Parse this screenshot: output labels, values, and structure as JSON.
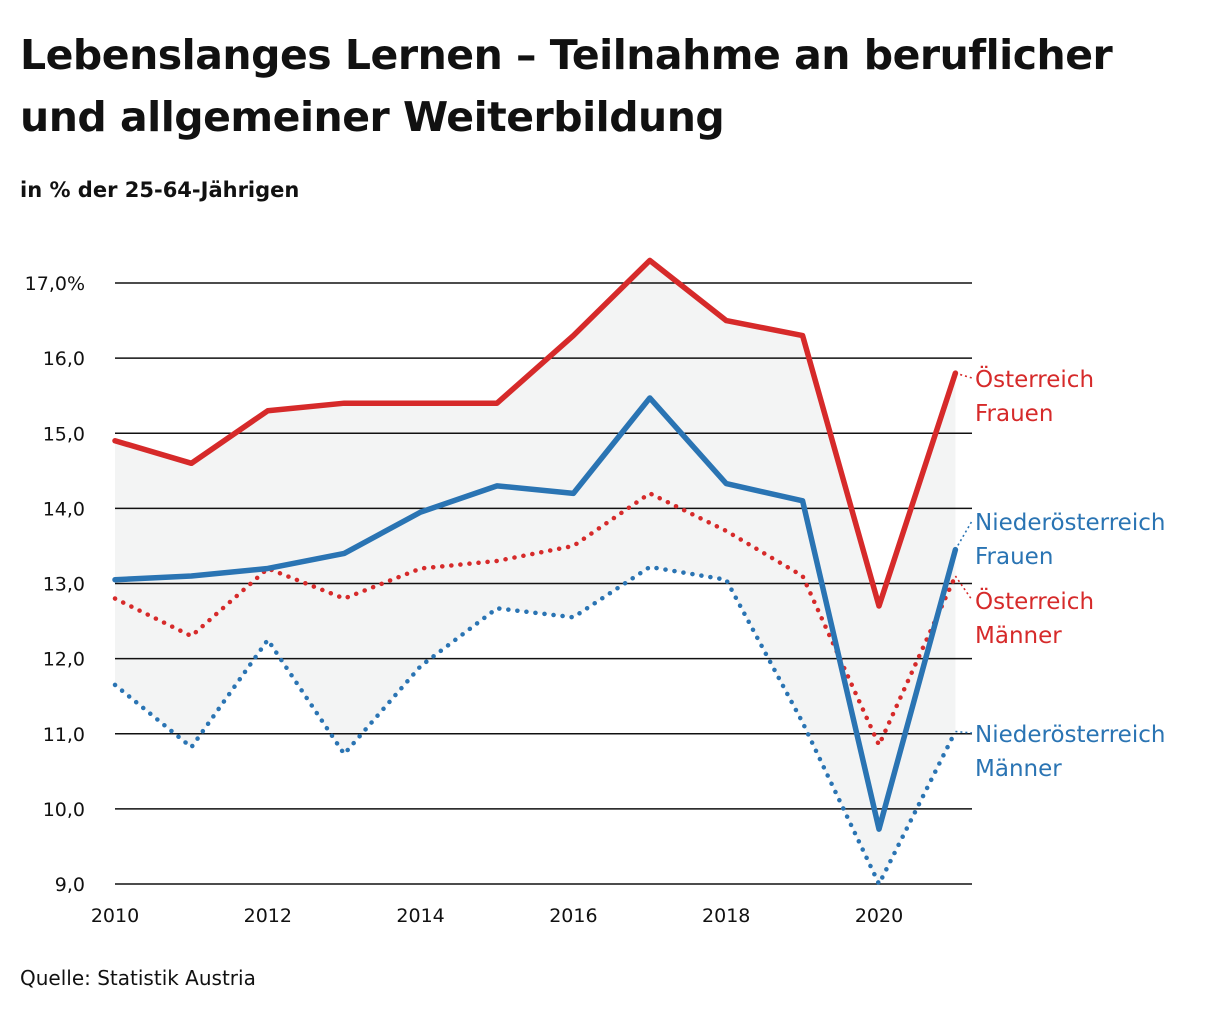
{
  "title": "Lebenslanges Lernen – Teilnahme an beruflicher und allgemeiner Weiterbildung",
  "subtitle": "in % der 25-64-Jährigen",
  "source": "Quelle: Statistik Austria",
  "colors": {
    "red": "#d62a2a",
    "blue": "#2a74b3",
    "band": "#f3f4f4",
    "grid": "#111111"
  },
  "chart_data": {
    "type": "line",
    "x": [
      2010,
      2011,
      2012,
      2013,
      2014,
      2015,
      2016,
      2017,
      2018,
      2019,
      2020,
      2021
    ],
    "ylim": [
      9.0,
      17.0
    ],
    "y_ticks": [
      "9,0",
      "10,0",
      "11,0",
      "12,0",
      "13,0",
      "14,0",
      "15,0",
      "16,0",
      "17,0%"
    ],
    "x_ticks": [
      "2010",
      "2012",
      "2014",
      "2016",
      "2018",
      "2020"
    ],
    "grid": true,
    "band_between": [
      "Österreich Frauen",
      "Niederösterreich Männer"
    ],
    "series": [
      {
        "name": "Österreich Frauen",
        "label_lines": [
          "Österreich",
          "Frauen"
        ],
        "color": "red",
        "style": "solid",
        "values": [
          14.9,
          14.6,
          15.3,
          15.4,
          15.4,
          15.4,
          16.3,
          17.3,
          16.5,
          16.3,
          12.7,
          15.8
        ]
      },
      {
        "name": "Niederösterreich Frauen",
        "label_lines": [
          "Niederösterreich",
          "Frauen"
        ],
        "color": "blue",
        "style": "solid",
        "values": [
          13.05,
          13.1,
          13.2,
          13.4,
          13.95,
          14.3,
          14.2,
          15.47,
          14.33,
          14.1,
          9.73,
          13.45
        ]
      },
      {
        "name": "Österreich Männer",
        "label_lines": [
          "Österreich",
          "Männer"
        ],
        "color": "red",
        "style": "dotted",
        "values": [
          12.8,
          12.3,
          13.2,
          12.8,
          13.2,
          13.3,
          13.5,
          14.2,
          13.7,
          13.1,
          10.85,
          13.1
        ]
      },
      {
        "name": "Niederösterreich Männer",
        "label_lines": [
          "Niederösterreich",
          "Männer"
        ],
        "color": "blue",
        "style": "dotted",
        "values": [
          11.65,
          10.82,
          12.25,
          10.73,
          11.9,
          12.67,
          12.55,
          13.22,
          13.05,
          11.15,
          9.0,
          11.03
        ]
      }
    ]
  }
}
